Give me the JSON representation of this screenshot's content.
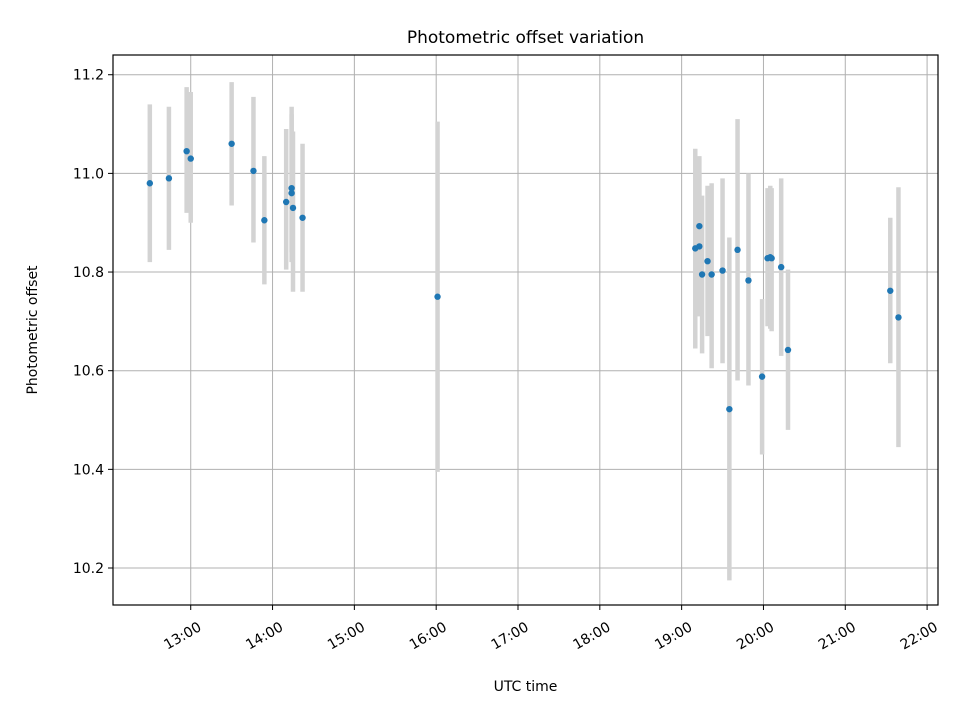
{
  "chart_data": {
    "type": "scatter",
    "title": "Photometric offset variation",
    "xlabel": "UTC time",
    "ylabel": "Photometric offset",
    "xlim": [
      "12:03",
      "22:08"
    ],
    "ylim": [
      10.125,
      11.24
    ],
    "x_ticks": [
      "13:00",
      "14:00",
      "15:00",
      "16:00",
      "17:00",
      "18:00",
      "19:00",
      "20:00",
      "21:00",
      "22:00"
    ],
    "y_ticks": [
      "10.2",
      "10.4",
      "10.6",
      "10.8",
      "11.0",
      "11.2"
    ],
    "grid": true,
    "colors": {
      "point": "#1f77b4",
      "errorbar": "#d3d3d3",
      "grid": "#b0b0b0"
    },
    "points": [
      {
        "x": "12:30",
        "y": 10.98,
        "err_low": 10.82,
        "err_high": 11.14
      },
      {
        "x": "12:44",
        "y": 10.99,
        "err_low": 10.845,
        "err_high": 11.135
      },
      {
        "x": "12:57",
        "y": 11.045,
        "err_low": 10.92,
        "err_high": 11.175
      },
      {
        "x": "13:00",
        "y": 11.03,
        "err_low": 10.9,
        "err_high": 11.165
      },
      {
        "x": "13:30",
        "y": 11.06,
        "err_low": 10.935,
        "err_high": 11.185
      },
      {
        "x": "13:46",
        "y": 11.005,
        "err_low": 10.86,
        "err_high": 11.155
      },
      {
        "x": "13:54",
        "y": 10.905,
        "err_low": 10.775,
        "err_high": 11.035
      },
      {
        "x": "14:10",
        "y": 10.942,
        "err_low": 10.805,
        "err_high": 11.09
      },
      {
        "x": "14:14",
        "y": 10.97,
        "err_low": 10.84,
        "err_high": 11.135
      },
      {
        "x": "14:14",
        "y": 10.96,
        "err_low": 10.82,
        "err_high": 11.12
      },
      {
        "x": "14:15",
        "y": 10.93,
        "err_low": 10.76,
        "err_high": 11.085
      },
      {
        "x": "14:22",
        "y": 10.91,
        "err_low": 10.76,
        "err_high": 11.06
      },
      {
        "x": "16:01",
        "y": 10.75,
        "err_low": 10.395,
        "err_high": 11.105
      },
      {
        "x": "19:10",
        "y": 10.848,
        "err_low": 10.645,
        "err_high": 11.05
      },
      {
        "x": "19:13",
        "y": 10.852,
        "err_low": 10.71,
        "err_high": 11.035
      },
      {
        "x": "19:13",
        "y": 10.893,
        "err_low": 10.745,
        "err_high": 11.0
      },
      {
        "x": "19:15",
        "y": 10.795,
        "err_low": 10.635,
        "err_high": 10.955
      },
      {
        "x": "19:19",
        "y": 10.822,
        "err_low": 10.67,
        "err_high": 10.975
      },
      {
        "x": "19:22",
        "y": 10.795,
        "err_low": 10.605,
        "err_high": 10.98
      },
      {
        "x": "19:30",
        "y": 10.803,
        "err_low": 10.615,
        "err_high": 10.99
      },
      {
        "x": "19:35",
        "y": 10.522,
        "err_low": 10.175,
        "err_high": 10.87
      },
      {
        "x": "19:41",
        "y": 10.845,
        "err_low": 10.58,
        "err_high": 11.11
      },
      {
        "x": "19:49",
        "y": 10.783,
        "err_low": 10.57,
        "err_high": 11.0
      },
      {
        "x": "19:59",
        "y": 10.588,
        "err_low": 10.43,
        "err_high": 10.745
      },
      {
        "x": "20:03",
        "y": 10.828,
        "err_low": 10.69,
        "err_high": 10.97
      },
      {
        "x": "20:05",
        "y": 10.83,
        "err_low": 10.685,
        "err_high": 10.975
      },
      {
        "x": "20:06",
        "y": 10.828,
        "err_low": 10.68,
        "err_high": 10.97
      },
      {
        "x": "20:13",
        "y": 10.81,
        "err_low": 10.63,
        "err_high": 10.99
      },
      {
        "x": "20:18",
        "y": 10.642,
        "err_low": 10.48,
        "err_high": 10.805
      },
      {
        "x": "21:33",
        "y": 10.762,
        "err_low": 10.615,
        "err_high": 10.91
      },
      {
        "x": "21:39",
        "y": 10.708,
        "err_low": 10.445,
        "err_high": 10.972
      }
    ]
  }
}
